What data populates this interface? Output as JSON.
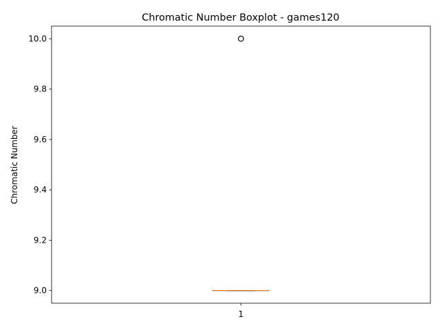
{
  "chart_data": {
    "type": "boxplot",
    "title": "Chromatic Number Boxplot - games120",
    "xlabel": "",
    "ylabel": "Chromatic Number",
    "categories": [
      "1"
    ],
    "ylim": [
      8.95,
      10.05
    ],
    "yticks": [
      9.0,
      9.2,
      9.4,
      9.6,
      9.8,
      10.0
    ],
    "ytick_labels": [
      "9.0",
      "9.2",
      "9.4",
      "9.6",
      "9.8",
      "10.0"
    ],
    "grid": false,
    "boxes": [
      {
        "category": "1",
        "min": 9.0,
        "q1": 9.0,
        "median": 9.0,
        "q3": 9.0,
        "max": 9.0,
        "outliers": [
          10.0
        ]
      }
    ],
    "colors": {
      "box": "#000000",
      "median": "#ff7f0e",
      "whisker": "#000000",
      "outlier": "#000000"
    }
  }
}
